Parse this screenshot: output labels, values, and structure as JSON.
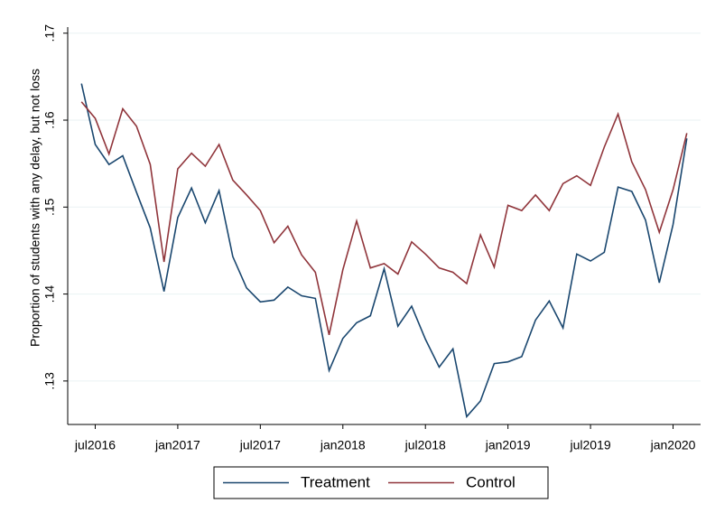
{
  "chart_data": {
    "type": "line",
    "ylabel": "Proportion of students with any delay, but not loss",
    "x": [
      "2016-06",
      "2016-07",
      "2016-08",
      "2016-09",
      "2016-10",
      "2016-11",
      "2016-12",
      "2017-01",
      "2017-02",
      "2017-03",
      "2017-04",
      "2017-05",
      "2017-06",
      "2017-07",
      "2017-08",
      "2017-09",
      "2017-10",
      "2017-11",
      "2017-12",
      "2018-01",
      "2018-02",
      "2018-03",
      "2018-04",
      "2018-05",
      "2018-06",
      "2018-07",
      "2018-08",
      "2018-09",
      "2018-10",
      "2018-11",
      "2018-12",
      "2019-01",
      "2019-02",
      "2019-03",
      "2019-04",
      "2019-05",
      "2019-06",
      "2019-07",
      "2019-08",
      "2019-09",
      "2019-10",
      "2019-11",
      "2019-12",
      "2020-01",
      "2020-02"
    ],
    "series": [
      {
        "name": "Treatment",
        "color": "#1a476f",
        "values": [
          0.1642,
          0.1572,
          0.1549,
          0.1559,
          0.1517,
          0.1476,
          0.1403,
          0.1488,
          0.1522,
          0.1482,
          0.1519,
          0.1443,
          0.1407,
          0.1391,
          0.1393,
          0.1408,
          0.1398,
          0.1395,
          0.1312,
          0.1349,
          0.1367,
          0.1375,
          0.1429,
          0.1363,
          0.1386,
          0.1348,
          0.1316,
          0.1337,
          0.1259,
          0.1277,
          0.132,
          0.1322,
          0.1328,
          0.137,
          0.1392,
          0.1361,
          0.1446,
          0.1438,
          0.1448,
          0.1523,
          0.1518,
          0.1485,
          0.1413,
          0.148,
          0.1579
        ]
      },
      {
        "name": "Control",
        "color": "#90353b",
        "values": [
          0.1621,
          0.1602,
          0.1561,
          0.1613,
          0.1593,
          0.1549,
          0.1437,
          0.1544,
          0.1562,
          0.1547,
          0.1572,
          0.1531,
          0.1514,
          0.1496,
          0.1459,
          0.1478,
          0.1445,
          0.1425,
          0.1353,
          0.1428,
          0.1484,
          0.143,
          0.1435,
          0.1423,
          0.146,
          0.1446,
          0.143,
          0.1425,
          0.1412,
          0.1468,
          0.1431,
          0.1502,
          0.1496,
          0.1514,
          0.1496,
          0.1527,
          0.1536,
          0.1525,
          0.1569,
          0.1607,
          0.1552,
          0.152,
          0.1471,
          0.152,
          0.1585
        ]
      }
    ],
    "xlim": [
      "2016-05",
      "2020-03"
    ],
    "xticks": [
      {
        "value": "2016-07",
        "label": "jul2016"
      },
      {
        "value": "2017-01",
        "label": "jan2017"
      },
      {
        "value": "2017-07",
        "label": "jul2017"
      },
      {
        "value": "2018-01",
        "label": "jan2018"
      },
      {
        "value": "2018-07",
        "label": "jul2018"
      },
      {
        "value": "2019-01",
        "label": "jan2019"
      },
      {
        "value": "2019-07",
        "label": "jul2019"
      },
      {
        "value": "2020-01",
        "label": "jan2020"
      }
    ],
    "ylim": [
      0.125,
      0.1707
    ],
    "yticks": [
      {
        "value": 0.13,
        "label": ".13"
      },
      {
        "value": 0.14,
        "label": ".14"
      },
      {
        "value": 0.15,
        "label": ".15"
      },
      {
        "value": 0.16,
        "label": ".16"
      },
      {
        "value": 0.17,
        "label": ".17"
      }
    ],
    "grid": true
  }
}
